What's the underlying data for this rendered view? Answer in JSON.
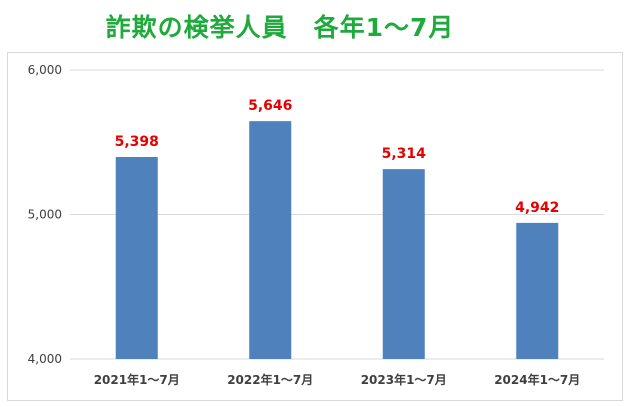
{
  "chart_data": {
    "type": "bar",
    "title": "詐欺の検挙人員　各年1～7月",
    "categories": [
      "2021年1～7月",
      "2022年1～7月",
      "2023年1～7月",
      "2024年1～7月"
    ],
    "values": [
      5398,
      5646,
      5314,
      4942
    ],
    "data_labels": [
      "5,398",
      "5,646",
      "5,314",
      "4,942"
    ],
    "yticks": [
      "4,000",
      "5,000",
      "6,000"
    ],
    "ytick_values": [
      4000,
      5000,
      6000
    ],
    "ylim": [
      4000,
      6000
    ],
    "xlabel": "",
    "ylabel": "",
    "grid": true,
    "legend": "none"
  },
  "colors": {
    "title": "#1faa3c",
    "bar": "#4f81bd",
    "data_label": "#e60000",
    "grid": "#d9d9d9"
  }
}
